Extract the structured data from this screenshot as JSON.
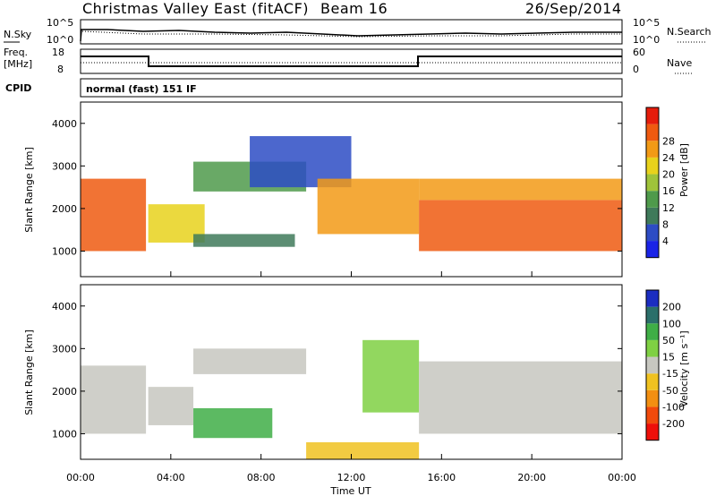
{
  "header": {
    "station": "Christmas Valley East (fitACF)",
    "beam": "Beam 16",
    "date": "26/Sep/2014"
  },
  "strip_labels": {
    "nsky": "N.Sky",
    "nsky_ticks": [
      "10^5",
      "10^0"
    ],
    "nsearch": "N.Search",
    "nsearch_ticks": [
      "10^5",
      "10^0"
    ],
    "freq": "Freq.",
    "freq_unit": "[MHz]",
    "freq_ticks": [
      "18",
      "8"
    ],
    "nave": "Nave",
    "nave_ticks": [
      "60",
      "0"
    ],
    "cpid": "CPID",
    "cpid_value": "normal (fast) 151 IF"
  },
  "colors": {
    "power": [
      "#1a23e6",
      "#2d4cc4",
      "#3f7a5a",
      "#4f9a4b",
      "#9fc33a",
      "#e8d21c",
      "#f29a16",
      "#ef5a10",
      "#e51d0c"
    ],
    "velocity": [
      "#ee0f0a",
      "#f14a0c",
      "#f28f12",
      "#f0c221",
      "#c7c7c0",
      "#7fd043",
      "#3fae46",
      "#2b6f6a",
      "#1b2dc1"
    ],
    "nsky_line": "#000000"
  },
  "chart_data": [
    {
      "type": "heatmap",
      "name": "power",
      "ylabel": "Slant Range [km]",
      "yticks": [
        "1000",
        "2000",
        "3000",
        "4000"
      ],
      "ylim": [
        400,
        4500
      ],
      "colorbar_label": "Power [dB]",
      "colorbar_ticks": [
        "4",
        "8",
        "12",
        "16",
        "20",
        "24",
        "28"
      ],
      "colorbar_range": [
        0,
        32
      ],
      "bands": [
        {
          "t0": 0.0,
          "t1": 2.9,
          "r0": 1000,
          "r1": 2700,
          "value": 28
        },
        {
          "t0": 3.0,
          "t1": 5.5,
          "r0": 1200,
          "r1": 2100,
          "value": 18
        },
        {
          "t0": 5.0,
          "t1": 10.0,
          "r0": 2400,
          "r1": 3100,
          "value": 14
        },
        {
          "t0": 5.0,
          "t1": 9.5,
          "r0": 1100,
          "r1": 1400,
          "value": 8
        },
        {
          "t0": 7.5,
          "t1": 12.0,
          "r0": 2500,
          "r1": 3700,
          "value": 6
        },
        {
          "t0": 10.5,
          "t1": 15.0,
          "r0": 1400,
          "r1": 2700,
          "value": 22
        },
        {
          "t0": 15.0,
          "t1": 24.0,
          "r0": 1000,
          "r1": 2200,
          "value": 28
        },
        {
          "t0": 15.0,
          "t1": 24.0,
          "r0": 2200,
          "r1": 2700,
          "value": 22
        }
      ]
    },
    {
      "type": "heatmap",
      "name": "velocity",
      "ylabel": "Slant Range [km]",
      "xlabel": "Time UT",
      "xticks": [
        "00:00",
        "04:00",
        "08:00",
        "12:00",
        "16:00",
        "20:00",
        "00:00"
      ],
      "yticks": [
        "1000",
        "2000",
        "3000",
        "4000"
      ],
      "ylim": [
        400,
        4500
      ],
      "colorbar_label": "Velocity [m s⁻¹]",
      "colorbar_ticks": [
        "200",
        "100",
        "50",
        "15",
        "-15",
        "-50",
        "-100",
        "-200"
      ],
      "bands": [
        {
          "t0": 0.0,
          "t1": 2.9,
          "r0": 1000,
          "r1": 2600,
          "value": 0
        },
        {
          "t0": 3.0,
          "t1": 5.0,
          "r0": 1200,
          "r1": 2100,
          "value": 0
        },
        {
          "t0": 5.0,
          "t1": 10.0,
          "r0": 2400,
          "r1": 3000,
          "value": 0
        },
        {
          "t0": 5.0,
          "t1": 8.5,
          "r0": 900,
          "r1": 1600,
          "value": 70
        },
        {
          "t0": 12.5,
          "t1": 15.0,
          "r0": 1500,
          "r1": 3200,
          "value": 40
        },
        {
          "t0": 15.0,
          "t1": 24.0,
          "r0": 1000,
          "r1": 2700,
          "value": 0
        },
        {
          "t0": 10.0,
          "t1": 15.0,
          "r0": 400,
          "r1": 800,
          "value": -40
        }
      ]
    }
  ]
}
